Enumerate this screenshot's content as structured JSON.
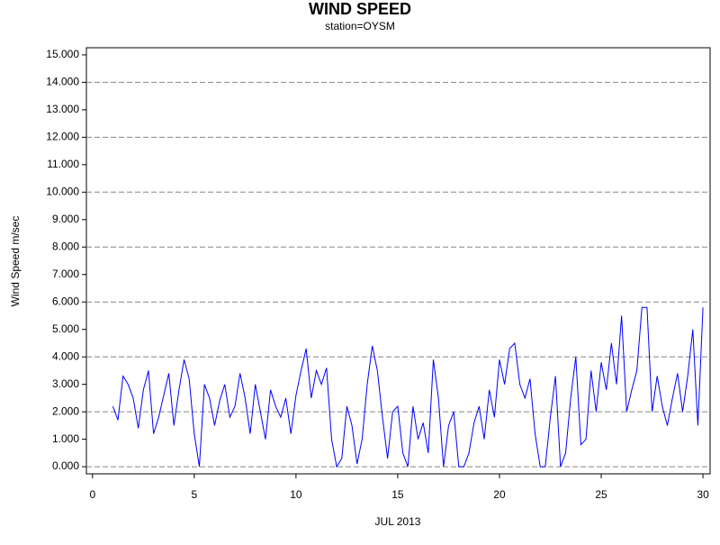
{
  "chart_data": {
    "type": "line",
    "title": "WIND SPEED",
    "subtitle": "station=OYSM",
    "x_label": "JUL 2013",
    "y_label": "Wind Speed m/sec",
    "xlim": [
      -0.3,
      30.35
    ],
    "xticks": [
      0,
      5,
      10,
      15,
      20,
      25,
      30
    ],
    "ylim": [
      -0.26,
      15.26
    ],
    "yticks": [
      {
        "value": 0,
        "label": "0.000"
      },
      {
        "value": 1,
        "label": "1.000"
      },
      {
        "value": 2,
        "label": "2.000"
      },
      {
        "value": 3,
        "label": "3.000"
      },
      {
        "value": 4,
        "label": "4.000"
      },
      {
        "value": 5,
        "label": "5.000"
      },
      {
        "value": 6,
        "label": "6.000"
      },
      {
        "value": 7,
        "label": "7.000"
      },
      {
        "value": 8,
        "label": "8.000"
      },
      {
        "value": 9,
        "label": "9.000"
      },
      {
        "value": 10,
        "label": "10.000"
      },
      {
        "value": 11,
        "label": "11.000"
      },
      {
        "value": 12,
        "label": "12.000"
      },
      {
        "value": 13,
        "label": "13.000"
      },
      {
        "value": 14,
        "label": "14.000"
      },
      {
        "value": 15,
        "label": "15.000"
      }
    ],
    "grid_lines": [
      0,
      2,
      4,
      6,
      8,
      10,
      12,
      14
    ],
    "series": [
      {
        "color": "#0000ff",
        "x": [
          1,
          1.25,
          1.5,
          1.75,
          2,
          2.25,
          2.5,
          2.75,
          3,
          3.25,
          3.5,
          3.75,
          4,
          4.25,
          4.5,
          4.75,
          5,
          5.25,
          5.5,
          5.75,
          6,
          6.25,
          6.5,
          6.75,
          7,
          7.25,
          7.5,
          7.75,
          8,
          8.25,
          8.5,
          8.75,
          9,
          9.25,
          9.5,
          9.75,
          10,
          10.25,
          10.5,
          10.75,
          11,
          11.25,
          11.5,
          11.75,
          12,
          12.25,
          12.5,
          12.75,
          13,
          13.25,
          13.5,
          13.75,
          14,
          14.25,
          14.5,
          14.75,
          15,
          15.25,
          15.5,
          15.75,
          16,
          16.25,
          16.5,
          16.75,
          17,
          17.25,
          17.5,
          17.75,
          18,
          18.25,
          18.5,
          18.75,
          19,
          19.25,
          19.5,
          19.75,
          20,
          20.25,
          20.5,
          20.75,
          21,
          21.25,
          21.5,
          21.75,
          22,
          22.25,
          22.5,
          22.75,
          23,
          23.25,
          23.5,
          23.75,
          24,
          24.25,
          24.5,
          24.75,
          25,
          25.25,
          25.5,
          25.75,
          26,
          26.25,
          26.5,
          26.75,
          27,
          27.25,
          27.5,
          27.75,
          28,
          28.25,
          28.5,
          28.75,
          29,
          29.25,
          29.5,
          29.75,
          30
        ],
        "values": [
          2.2,
          1.7,
          3.3,
          3.0,
          2.5,
          1.4,
          2.8,
          3.5,
          1.2,
          1.8,
          2.6,
          3.4,
          1.5,
          2.8,
          3.9,
          3.2,
          1.2,
          0,
          3.0,
          2.5,
          1.5,
          2.4,
          3.0,
          1.8,
          2.2,
          3.4,
          2.5,
          1.2,
          3.0,
          2.0,
          1.0,
          2.8,
          2.2,
          1.8,
          2.5,
          1.2,
          2.6,
          3.5,
          4.3,
          2.5,
          3.5,
          3.0,
          3.6,
          1.0,
          0,
          0.3,
          2.2,
          1.5,
          0.1,
          1.0,
          3.0,
          4.4,
          3.5,
          1.8,
          0.3,
          2.0,
          2.2,
          0.5,
          0,
          2.2,
          1.0,
          1.6,
          0.5,
          3.9,
          2.5,
          0,
          1.5,
          2.0,
          0,
          0,
          0.5,
          1.6,
          2.2,
          1.0,
          2.8,
          1.8,
          3.9,
          3.0,
          4.3,
          4.5,
          3.0,
          2.5,
          3.2,
          1.2,
          0,
          0,
          1.8,
          3.3,
          0,
          0.5,
          2.5,
          4.0,
          0.8,
          1.0,
          3.5,
          2.0,
          3.8,
          2.8,
          4.5,
          3.0,
          5.5,
          2.0,
          2.8,
          3.5,
          5.8,
          5.8,
          2.0,
          3.3,
          2.2,
          1.5,
          2.5,
          3.4,
          2.0,
          3.3,
          5.0,
          1.5,
          5.8
        ]
      }
    ]
  }
}
